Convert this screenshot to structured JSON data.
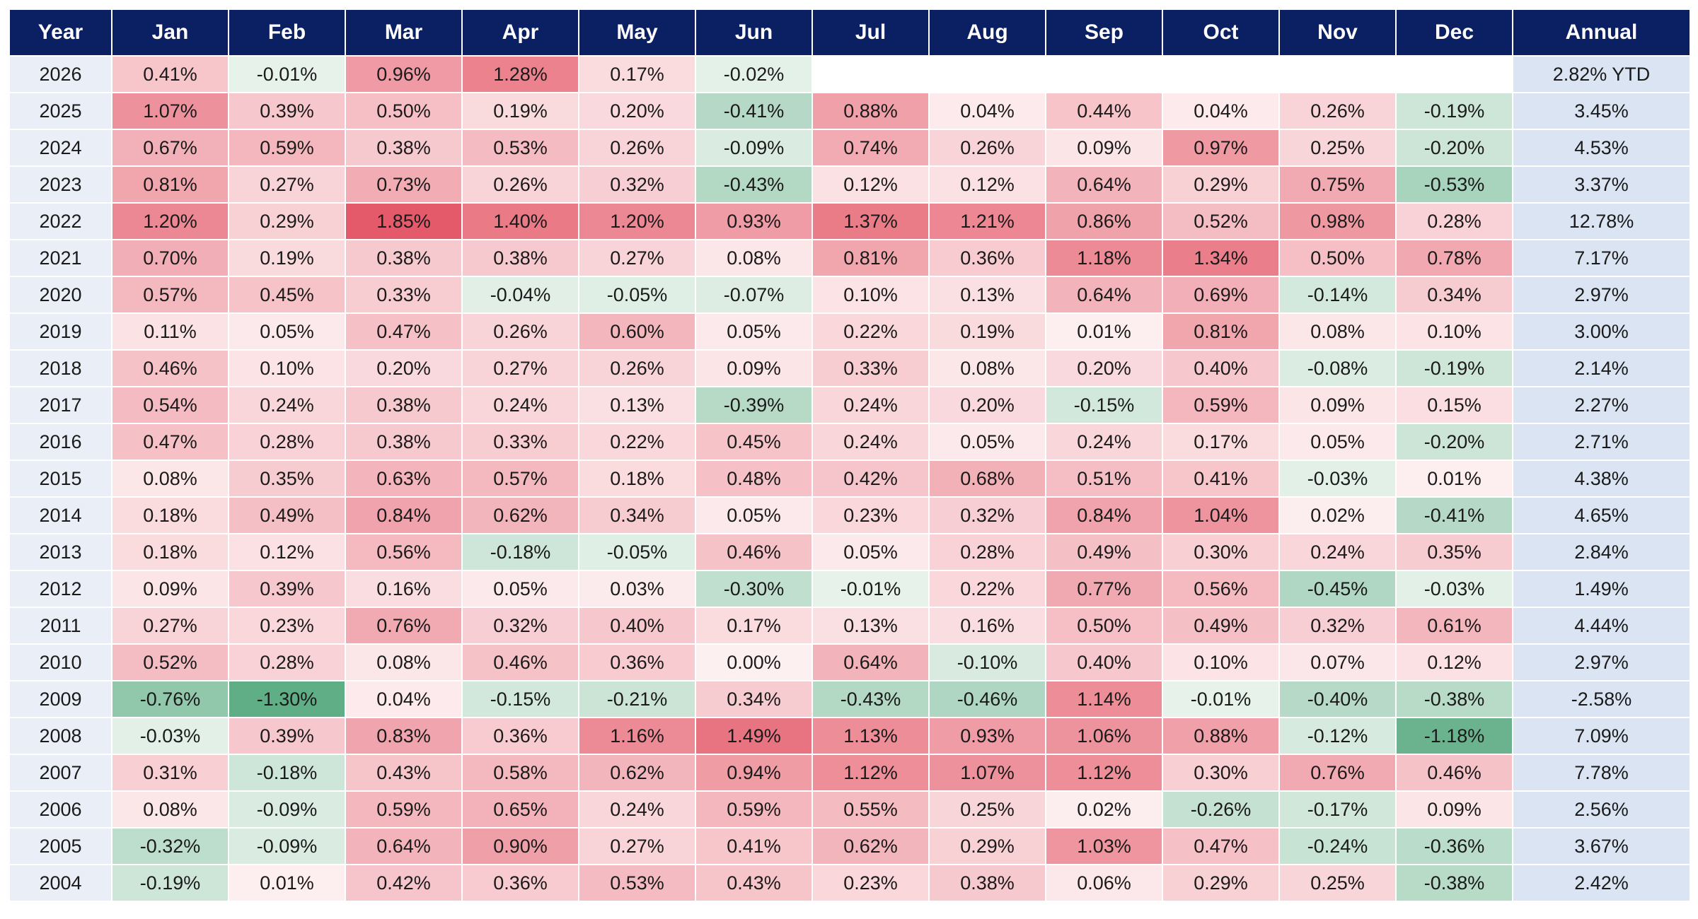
{
  "chart_data": {
    "type": "heatmap",
    "columns": {
      "year": "Year",
      "months": [
        "Jan",
        "Feb",
        "Mar",
        "Apr",
        "May",
        "Jun",
        "Jul",
        "Aug",
        "Sep",
        "Oct",
        "Nov",
        "Dec"
      ],
      "annual": "Annual"
    },
    "colors": {
      "header_bg": "#0b1f63",
      "header_text": "#ffffff",
      "positive_max": "#e45a6a",
      "negative_max": "#5fae86",
      "neutral": "#fdf0f1",
      "year_bg": "#eaeff7",
      "annual_bg": "#dbe4f2"
    },
    "rows": [
      {
        "year": "2026",
        "months": [
          "0.41%",
          "-0.01%",
          "0.96%",
          "1.28%",
          "0.17%",
          "-0.02%",
          "",
          "",
          "",
          "",
          "",
          ""
        ],
        "annual": "2.82% YTD"
      },
      {
        "year": "2025",
        "months": [
          "1.07%",
          "0.39%",
          "0.50%",
          "0.19%",
          "0.20%",
          "-0.41%",
          "0.88%",
          "0.04%",
          "0.44%",
          "0.04%",
          "0.26%",
          "-0.19%"
        ],
        "annual": "3.45%"
      },
      {
        "year": "2024",
        "months": [
          "0.67%",
          "0.59%",
          "0.38%",
          "0.53%",
          "0.26%",
          "-0.09%",
          "0.74%",
          "0.26%",
          "0.09%",
          "0.97%",
          "0.25%",
          "-0.20%"
        ],
        "annual": "4.53%"
      },
      {
        "year": "2023",
        "months": [
          "0.81%",
          "0.27%",
          "0.73%",
          "0.26%",
          "0.32%",
          "-0.43%",
          "0.12%",
          "0.12%",
          "0.64%",
          "0.29%",
          "0.75%",
          "-0.53%"
        ],
        "annual": "3.37%"
      },
      {
        "year": "2022",
        "months": [
          "1.20%",
          "0.29%",
          "1.85%",
          "1.40%",
          "1.20%",
          "0.93%",
          "1.37%",
          "1.21%",
          "0.86%",
          "0.52%",
          "0.98%",
          "0.28%"
        ],
        "annual": "12.78%"
      },
      {
        "year": "2021",
        "months": [
          "0.70%",
          "0.19%",
          "0.38%",
          "0.38%",
          "0.27%",
          "0.08%",
          "0.81%",
          "0.36%",
          "1.18%",
          "1.34%",
          "0.50%",
          "0.78%"
        ],
        "annual": "7.17%"
      },
      {
        "year": "2020",
        "months": [
          "0.57%",
          "0.45%",
          "0.33%",
          "-0.04%",
          "-0.05%",
          "-0.07%",
          "0.10%",
          "0.13%",
          "0.64%",
          "0.69%",
          "-0.14%",
          "0.34%"
        ],
        "annual": "2.97%"
      },
      {
        "year": "2019",
        "months": [
          "0.11%",
          "0.05%",
          "0.47%",
          "0.26%",
          "0.60%",
          "0.05%",
          "0.22%",
          "0.19%",
          "0.01%",
          "0.81%",
          "0.08%",
          "0.10%"
        ],
        "annual": "3.00%"
      },
      {
        "year": "2018",
        "months": [
          "0.46%",
          "0.10%",
          "0.20%",
          "0.27%",
          "0.26%",
          "0.09%",
          "0.33%",
          "0.08%",
          "0.20%",
          "0.40%",
          "-0.08%",
          "-0.19%"
        ],
        "annual": "2.14%"
      },
      {
        "year": "2017",
        "months": [
          "0.54%",
          "0.24%",
          "0.38%",
          "0.24%",
          "0.13%",
          "-0.39%",
          "0.24%",
          "0.20%",
          "-0.15%",
          "0.59%",
          "0.09%",
          "0.15%"
        ],
        "annual": "2.27%"
      },
      {
        "year": "2016",
        "months": [
          "0.47%",
          "0.28%",
          "0.38%",
          "0.33%",
          "0.22%",
          "0.45%",
          "0.24%",
          "0.05%",
          "0.24%",
          "0.17%",
          "0.05%",
          "-0.20%"
        ],
        "annual": "2.71%"
      },
      {
        "year": "2015",
        "months": [
          "0.08%",
          "0.35%",
          "0.63%",
          "0.57%",
          "0.18%",
          "0.48%",
          "0.42%",
          "0.68%",
          "0.51%",
          "0.41%",
          "-0.03%",
          "0.01%"
        ],
        "annual": "4.38%"
      },
      {
        "year": "2014",
        "months": [
          "0.18%",
          "0.49%",
          "0.84%",
          "0.62%",
          "0.34%",
          "0.05%",
          "0.23%",
          "0.32%",
          "0.84%",
          "1.04%",
          "0.02%",
          "-0.41%"
        ],
        "annual": "4.65%"
      },
      {
        "year": "2013",
        "months": [
          "0.18%",
          "0.12%",
          "0.56%",
          "-0.18%",
          "-0.05%",
          "0.46%",
          "0.05%",
          "0.28%",
          "0.49%",
          "0.30%",
          "0.24%",
          "0.35%"
        ],
        "annual": "2.84%"
      },
      {
        "year": "2012",
        "months": [
          "0.09%",
          "0.39%",
          "0.16%",
          "0.05%",
          "0.03%",
          "-0.30%",
          "-0.01%",
          "0.22%",
          "0.77%",
          "0.56%",
          "-0.45%",
          "-0.03%"
        ],
        "annual": "1.49%"
      },
      {
        "year": "2011",
        "months": [
          "0.27%",
          "0.23%",
          "0.76%",
          "0.32%",
          "0.40%",
          "0.17%",
          "0.13%",
          "0.16%",
          "0.50%",
          "0.49%",
          "0.32%",
          "0.61%"
        ],
        "annual": "4.44%"
      },
      {
        "year": "2010",
        "months": [
          "0.52%",
          "0.28%",
          "0.08%",
          "0.46%",
          "0.36%",
          "0.00%",
          "0.64%",
          "-0.10%",
          "0.40%",
          "0.10%",
          "0.07%",
          "0.12%"
        ],
        "annual": "2.97%"
      },
      {
        "year": "2009",
        "months": [
          "-0.76%",
          "-1.30%",
          "0.04%",
          "-0.15%",
          "-0.21%",
          "0.34%",
          "-0.43%",
          "-0.46%",
          "1.14%",
          "-0.01%",
          "-0.40%",
          "-0.38%"
        ],
        "annual": "-2.58%"
      },
      {
        "year": "2008",
        "months": [
          "-0.03%",
          "0.39%",
          "0.83%",
          "0.36%",
          "1.16%",
          "1.49%",
          "1.13%",
          "0.93%",
          "1.06%",
          "0.88%",
          "-0.12%",
          "-1.18%"
        ],
        "annual": "7.09%"
      },
      {
        "year": "2007",
        "months": [
          "0.31%",
          "-0.18%",
          "0.43%",
          "0.58%",
          "0.62%",
          "0.94%",
          "1.12%",
          "1.07%",
          "1.12%",
          "0.30%",
          "0.76%",
          "0.46%"
        ],
        "annual": "7.78%"
      },
      {
        "year": "2006",
        "months": [
          "0.08%",
          "-0.09%",
          "0.59%",
          "0.65%",
          "0.24%",
          "0.59%",
          "0.55%",
          "0.25%",
          "0.02%",
          "-0.26%",
          "-0.17%",
          "0.09%"
        ],
        "annual": "2.56%"
      },
      {
        "year": "2005",
        "months": [
          "-0.32%",
          "-0.09%",
          "0.64%",
          "0.90%",
          "0.27%",
          "0.41%",
          "0.62%",
          "0.29%",
          "1.03%",
          "0.47%",
          "-0.24%",
          "-0.36%"
        ],
        "annual": "3.67%"
      },
      {
        "year": "2004",
        "months": [
          "-0.19%",
          "0.01%",
          "0.42%",
          "0.36%",
          "0.53%",
          "0.43%",
          "0.23%",
          "0.38%",
          "0.06%",
          "0.29%",
          "0.25%",
          "-0.38%"
        ],
        "annual": "2.42%"
      }
    ]
  }
}
